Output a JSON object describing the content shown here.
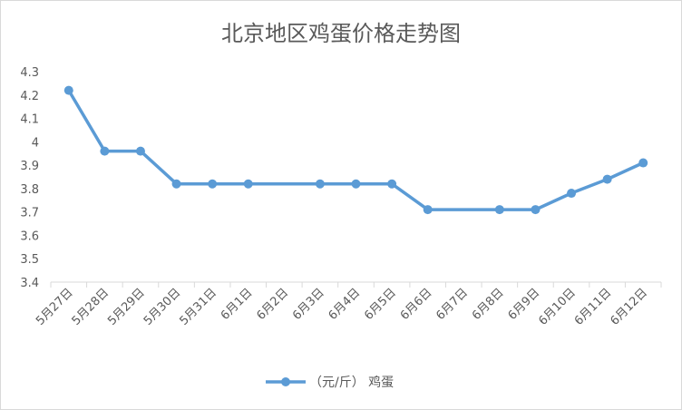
{
  "chart_data": {
    "type": "line",
    "title": "北京地区鸡蛋价格走势图",
    "xlabel": "",
    "ylabel": "",
    "categories": [
      "5月27日",
      "5月28日",
      "5月29日",
      "5月30日",
      "5月31日",
      "6月1日",
      "6月2日",
      "6月3日",
      "6月4日",
      "6月5日",
      "6月6日",
      "6月7日",
      "6月8日",
      "6月9日",
      "6月10日",
      "6月11日",
      "6月12日"
    ],
    "series": [
      {
        "name": "（元/斤） 鸡蛋",
        "values": [
          4.22,
          3.96,
          3.96,
          3.82,
          3.82,
          3.82,
          null,
          3.82,
          3.82,
          3.82,
          3.71,
          null,
          3.71,
          3.71,
          3.78,
          3.84,
          3.91
        ]
      }
    ],
    "ylim": [
      3.4,
      4.3
    ],
    "yticks": [
      "3.4",
      "3.5",
      "3.6",
      "3.7",
      "3.8",
      "3.9",
      "4",
      "4.1",
      "4.2",
      "4.3"
    ],
    "grid": false,
    "legend": "bottom",
    "colors": {
      "series": "#5b9bd5",
      "axis": "#d9d9d9",
      "text": "#595959"
    }
  }
}
